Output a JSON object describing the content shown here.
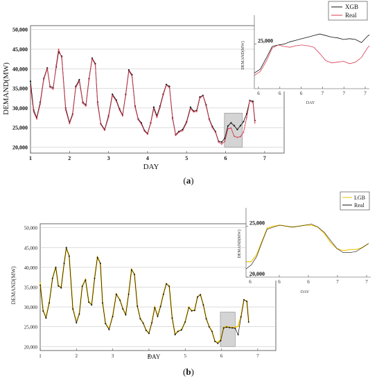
{
  "chart_data": [
    {
      "panel": "(a)",
      "type": "line",
      "xlabel": "DAY",
      "ylabel": "DEMAND(MW)",
      "x_ticks": [
        "1",
        "2",
        "3",
        "4",
        "5",
        "6",
        "7"
      ],
      "y_ticks": [
        "20,000",
        "25,000",
        "30,000",
        "35,000",
        "40,000",
        "45,000",
        "50,000"
      ],
      "xlim": [
        1,
        7.5
      ],
      "ylim": [
        18500,
        51000
      ],
      "colors": {
        "XGB": "#111111",
        "Real": "#d93a50"
      },
      "series": [
        {
          "name": "XGB",
          "x": [
            1.0,
            1.08,
            1.16,
            1.25,
            1.34,
            1.43,
            1.5,
            1.58,
            1.66,
            1.72,
            1.8,
            1.9,
            2.0,
            2.08,
            2.16,
            2.25,
            2.34,
            2.42,
            2.5,
            2.58,
            2.66,
            2.72,
            2.8,
            2.9,
            3.0,
            3.1,
            3.2,
            3.28,
            3.36,
            3.44,
            3.52,
            3.6,
            3.68,
            3.76,
            3.84,
            3.92,
            4.0,
            4.08,
            4.16,
            4.24,
            4.32,
            4.4,
            4.48,
            4.56,
            4.64,
            4.72,
            4.8,
            4.9,
            5.0,
            5.1,
            5.18,
            5.26,
            5.34,
            5.42,
            5.5,
            5.58,
            5.66,
            5.74,
            5.82,
            5.9,
            5.98,
            6.06,
            6.14,
            6.22,
            6.3,
            6.38,
            6.46,
            6.54,
            6.62,
            6.7,
            6.75
          ],
          "y": [
            36800,
            29500,
            27500,
            31500,
            37500,
            40200,
            35500,
            35200,
            40500,
            44300,
            43200,
            30000,
            26300,
            28500,
            35500,
            37200,
            31500,
            30800,
            37500,
            42700,
            41300,
            31500,
            26000,
            24500,
            28000,
            33500,
            32000,
            29800,
            28200,
            33500,
            39700,
            38500,
            30500,
            27200,
            26200,
            24300,
            23500,
            26200,
            30200,
            28000,
            30500,
            33500,
            36000,
            35500,
            27500,
            23200,
            24000,
            24500,
            26500,
            30200,
            29200,
            29400,
            32800,
            33200,
            30800,
            27200,
            25300,
            24000,
            21500,
            21300,
            22300,
            25400,
            26200,
            25500,
            24500,
            25500,
            26500,
            28500,
            31900,
            31700,
            26800
          ]
        },
        {
          "name": "Real",
          "x": [
            1.0,
            1.08,
            1.16,
            1.25,
            1.34,
            1.43,
            1.5,
            1.58,
            1.66,
            1.72,
            1.8,
            1.9,
            2.0,
            2.08,
            2.16,
            2.25,
            2.34,
            2.42,
            2.5,
            2.58,
            2.66,
            2.72,
            2.8,
            2.9,
            3.0,
            3.1,
            3.2,
            3.28,
            3.36,
            3.44,
            3.52,
            3.6,
            3.68,
            3.76,
            3.84,
            3.92,
            4.0,
            4.08,
            4.16,
            4.24,
            4.32,
            4.4,
            4.48,
            4.56,
            4.64,
            4.72,
            4.8,
            4.9,
            5.0,
            5.1,
            5.18,
            5.26,
            5.34,
            5.42,
            5.5,
            5.58,
            5.66,
            5.74,
            5.82,
            5.9,
            5.98,
            6.06,
            6.14,
            6.22,
            6.3,
            6.38,
            6.46,
            6.54,
            6.62,
            6.7,
            6.75
          ],
          "y": [
            35500,
            29000,
            27200,
            31000,
            37200,
            40000,
            35300,
            34800,
            41000,
            45000,
            42800,
            29500,
            26000,
            28200,
            35200,
            36800,
            31200,
            30500,
            37200,
            42500,
            41000,
            31000,
            25800,
            24300,
            27600,
            33200,
            31700,
            29500,
            28000,
            33200,
            39400,
            38200,
            30200,
            27000,
            25900,
            24100,
            23300,
            26000,
            29800,
            27600,
            30100,
            33200,
            35800,
            35200,
            27200,
            23000,
            23800,
            24200,
            26200,
            29800,
            29000,
            29100,
            32500,
            33100,
            30500,
            27000,
            25000,
            23800,
            21300,
            20800,
            21500,
            24700,
            24900,
            22800,
            22500,
            22700,
            23800,
            27500,
            31800,
            31400,
            26200
          ]
        }
      ],
      "highlight": {
        "x_range": [
          5.97,
          6.43
        ],
        "y_range": [
          20000,
          28700
        ]
      },
      "legend": {
        "entries": [
          "XGB",
          "Real"
        ],
        "position": "top-right"
      },
      "inset": {
        "ylabel": "DEMAND(MW)",
        "xlabel": "DAY",
        "x_ticks": [
          "6",
          "6",
          "6",
          "7",
          "7",
          "7"
        ],
        "y_ticks": [
          "25,000"
        ],
        "xlim": [
          5.92,
          7.08
        ],
        "ylim": [
          19300,
          28700
        ],
        "series": [
          {
            "name": "XGB",
            "x": [
              5.92,
              5.98,
              6.04,
              6.1,
              6.16,
              6.22,
              6.28,
              6.34,
              6.4,
              6.46,
              6.52,
              6.58,
              6.64,
              6.7,
              6.76,
              6.82,
              6.88,
              6.94,
              7.0,
              7.06,
              7.08
            ],
            "y": [
              21300,
              21800,
              23200,
              24700,
              24900,
              25000,
              25300,
              25500,
              25700,
              25900,
              26100,
              26300,
              26100,
              25900,
              25800,
              25600,
              25700,
              25600,
              25200,
              26000,
              26200
            ]
          },
          {
            "name": "Real",
            "x": [
              5.92,
              5.98,
              6.04,
              6.1,
              6.16,
              6.22,
              6.28,
              6.34,
              6.4,
              6.46,
              6.52,
              6.58,
              6.64,
              6.7,
              6.76,
              6.82,
              6.88,
              6.94,
              7.0,
              7.06,
              7.08
            ],
            "y": [
              21000,
              21500,
              22800,
              24500,
              24900,
              24700,
              24600,
              24800,
              24900,
              24800,
              24600,
              23800,
              22900,
              22600,
              22700,
              22800,
              22500,
              22700,
              23300,
              24500,
              24800
            ]
          }
        ]
      }
    },
    {
      "panel": "(b)",
      "type": "line",
      "xlabel": "DAY",
      "ylabel": "DEMAND(MW)",
      "x_ticks": [
        "1",
        "2",
        "3",
        "4",
        "5",
        "6",
        "7"
      ],
      "y_ticks": [
        "20,000",
        "25,000",
        "30,000",
        "35,000",
        "40,000",
        "45,000",
        "50,000"
      ],
      "xlim": [
        1,
        7.5
      ],
      "ylim": [
        19000,
        51000
      ],
      "colors": {
        "LGB": "#f2c200",
        "Real": "#111111"
      },
      "series": [
        {
          "name": "LGB",
          "x": [
            1.0,
            1.08,
            1.16,
            1.25,
            1.34,
            1.43,
            1.5,
            1.58,
            1.66,
            1.72,
            1.8,
            1.9,
            2.0,
            2.08,
            2.16,
            2.25,
            2.34,
            2.42,
            2.5,
            2.58,
            2.66,
            2.72,
            2.8,
            2.9,
            3.0,
            3.1,
            3.2,
            3.28,
            3.36,
            3.44,
            3.52,
            3.6,
            3.68,
            3.76,
            3.84,
            3.92,
            4.0,
            4.08,
            4.16,
            4.24,
            4.32,
            4.4,
            4.48,
            4.56,
            4.64,
            4.72,
            4.8,
            4.9,
            5.0,
            5.1,
            5.18,
            5.26,
            5.34,
            5.42,
            5.5,
            5.58,
            5.66,
            5.74,
            5.82,
            5.9,
            5.98,
            6.06,
            6.14,
            6.22,
            6.3,
            6.38,
            6.46,
            6.54,
            6.62,
            6.7,
            6.75
          ],
          "y": [
            36200,
            29200,
            27400,
            31300,
            37300,
            40100,
            35400,
            35000,
            40800,
            44800,
            43000,
            29800,
            26200,
            28400,
            35300,
            37000,
            31300,
            30700,
            37300,
            42600,
            41100,
            31200,
            25900,
            24400,
            27800,
            33300,
            31800,
            29600,
            28100,
            33300,
            39500,
            38300,
            30300,
            27100,
            26000,
            24200,
            23400,
            26100,
            30000,
            27800,
            30300,
            33300,
            35900,
            35300,
            27400,
            23100,
            23900,
            24300,
            26300,
            30000,
            29100,
            29200,
            32600,
            33100,
            30600,
            27100,
            25100,
            23900,
            21400,
            21000,
            21800,
            24800,
            25100,
            24900,
            24800,
            24900,
            25100,
            27700,
            31800,
            31500,
            26400
          ]
        },
        {
          "name": "Real",
          "x": [
            1.0,
            1.08,
            1.16,
            1.25,
            1.34,
            1.43,
            1.5,
            1.58,
            1.66,
            1.72,
            1.8,
            1.9,
            2.0,
            2.08,
            2.16,
            2.25,
            2.34,
            2.42,
            2.5,
            2.58,
            2.66,
            2.72,
            2.8,
            2.9,
            3.0,
            3.1,
            3.2,
            3.28,
            3.36,
            3.44,
            3.52,
            3.6,
            3.68,
            3.76,
            3.84,
            3.92,
            4.0,
            4.08,
            4.16,
            4.24,
            4.32,
            4.4,
            4.48,
            4.56,
            4.64,
            4.72,
            4.8,
            4.9,
            5.0,
            5.1,
            5.18,
            5.26,
            5.34,
            5.42,
            5.5,
            5.58,
            5.66,
            5.74,
            5.82,
            5.9,
            5.98,
            6.06,
            6.14,
            6.22,
            6.3,
            6.38,
            6.46,
            6.54,
            6.62,
            6.7,
            6.75
          ],
          "y": [
            35500,
            29000,
            27200,
            31000,
            37200,
            40000,
            35300,
            34800,
            41000,
            45000,
            42800,
            29500,
            26000,
            28200,
            35200,
            36800,
            31200,
            30500,
            37200,
            42500,
            41000,
            31000,
            25800,
            24300,
            27600,
            33200,
            31700,
            29500,
            28000,
            33200,
            39400,
            38200,
            30200,
            27000,
            25900,
            24100,
            23300,
            26000,
            29800,
            27600,
            30100,
            33200,
            35800,
            35200,
            27200,
            23000,
            23800,
            24200,
            26200,
            29800,
            29000,
            29100,
            32500,
            33100,
            30500,
            27000,
            25000,
            23800,
            21300,
            20800,
            21500,
            24700,
            24900,
            24800,
            24700,
            24600,
            23000,
            27500,
            31800,
            31400,
            26200
          ]
        }
      ],
      "highlight": {
        "x_range": [
          5.97,
          6.38
        ],
        "y_range": [
          20000,
          28700
        ]
      },
      "legend": {
        "entries": [
          "LGB",
          "Real"
        ],
        "position": "top-right"
      },
      "inset": {
        "ylabel": "DEMAND(MW)",
        "xlabel": "DAY",
        "x_ticks": [
          "6",
          "6",
          "6",
          "7",
          "7"
        ],
        "y_ticks": [
          "20,000",
          "25,000"
        ],
        "xlim": [
          5.92,
          7.1
        ],
        "ylim": [
          20000,
          26800
        ],
        "series": [
          {
            "name": "LGB",
            "x": [
              5.92,
              5.97,
              6.02,
              6.07,
              6.12,
              6.18,
              6.24,
              6.3,
              6.36,
              6.42,
              6.48,
              6.54,
              6.6,
              6.66,
              6.72,
              6.78,
              6.84,
              6.9,
              6.96,
              7.02,
              7.08
            ],
            "y": [
              21500,
              21500,
              22200,
              23500,
              24800,
              25000,
              25100,
              25000,
              24900,
              25000,
              25100,
              25100,
              24900,
              24300,
              23400,
              22800,
              22600,
              22700,
              22700,
              22900,
              23300
            ]
          },
          {
            "name": "Real",
            "x": [
              5.92,
              5.97,
              6.02,
              6.07,
              6.12,
              6.18,
              6.24,
              6.3,
              6.36,
              6.42,
              6.48,
              6.54,
              6.6,
              6.66,
              6.72,
              6.78,
              6.84,
              6.9,
              6.96,
              7.02,
              7.08
            ],
            "y": [
              20800,
              21200,
              22000,
              23400,
              24700,
              24900,
              25100,
              25000,
              24900,
              25000,
              25100,
              25200,
              24900,
              24400,
              23600,
              22800,
              22400,
              22400,
              22500,
              22900,
              23300
            ]
          }
        ]
      }
    }
  ],
  "captions": {
    "a": "a",
    "b": "b"
  }
}
